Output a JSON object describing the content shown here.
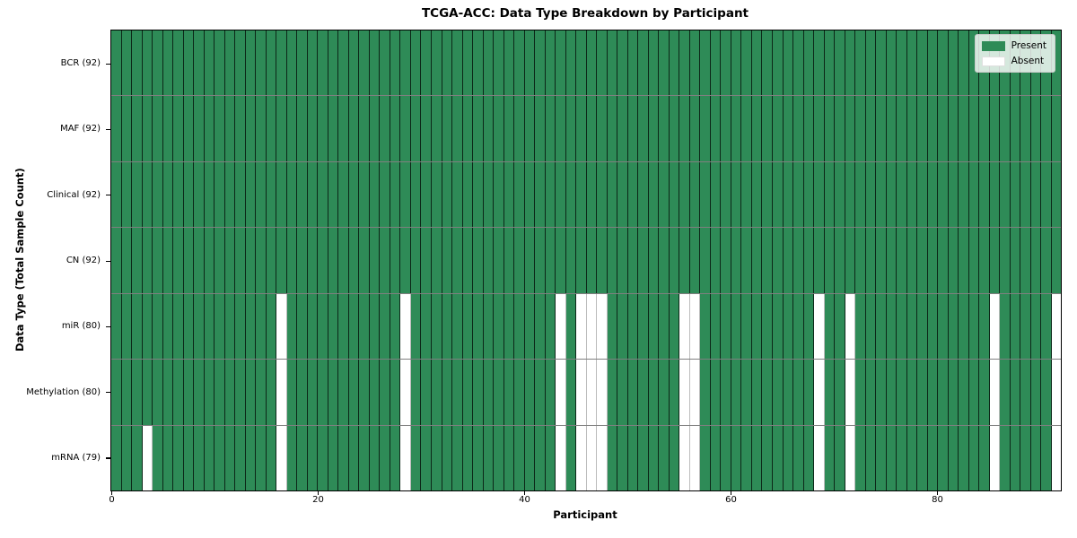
{
  "chart_data": {
    "type": "heatmap",
    "title": "TCGA-ACC: Data Type Breakdown by Participant",
    "xlabel": "Participant",
    "ylabel": "Data Type (Total Sample Count)",
    "x_ticks": [
      0,
      20,
      40,
      60,
      80
    ],
    "x_range": [
      0,
      92
    ],
    "n_participants": 92,
    "grid": true,
    "legend_position": "upper right",
    "colors": {
      "present": "#2e8b57",
      "absent": "#ffffff",
      "cell_edge": "#143521",
      "absent_edge": "#bcbcbc",
      "row_separator": "#808080",
      "spine": "#000000",
      "legend_background": "#eef2ee",
      "legend_border": "#cccccc"
    },
    "legend": [
      {
        "label": "Present",
        "color": "#2e8b57",
        "kind": "present"
      },
      {
        "label": "Absent",
        "color": "#ffffff",
        "kind": "absent"
      }
    ],
    "rows": [
      {
        "label": "BCR (92)",
        "data_type": "BCR",
        "total_samples": 92,
        "absent_participants": []
      },
      {
        "label": "MAF (92)",
        "data_type": "MAF",
        "total_samples": 92,
        "absent_participants": []
      },
      {
        "label": "Clinical (92)",
        "data_type": "Clinical",
        "total_samples": 92,
        "absent_participants": []
      },
      {
        "label": "CN (92)",
        "data_type": "CN",
        "total_samples": 92,
        "absent_participants": []
      },
      {
        "label": "miR (80)",
        "data_type": "miR",
        "total_samples": 80,
        "absent_participants": [
          16,
          28,
          43,
          45,
          46,
          47,
          55,
          56,
          68,
          71,
          85,
          91
        ]
      },
      {
        "label": "Methylation (80)",
        "data_type": "Methylation",
        "total_samples": 80,
        "absent_participants": [
          16,
          28,
          43,
          45,
          46,
          47,
          55,
          56,
          68,
          71,
          85,
          91
        ]
      },
      {
        "label": "mRNA (79)",
        "data_type": "mRNA",
        "total_samples": 79,
        "absent_participants": [
          3,
          16,
          28,
          43,
          45,
          46,
          47,
          55,
          56,
          68,
          71,
          85,
          91
        ]
      }
    ]
  }
}
